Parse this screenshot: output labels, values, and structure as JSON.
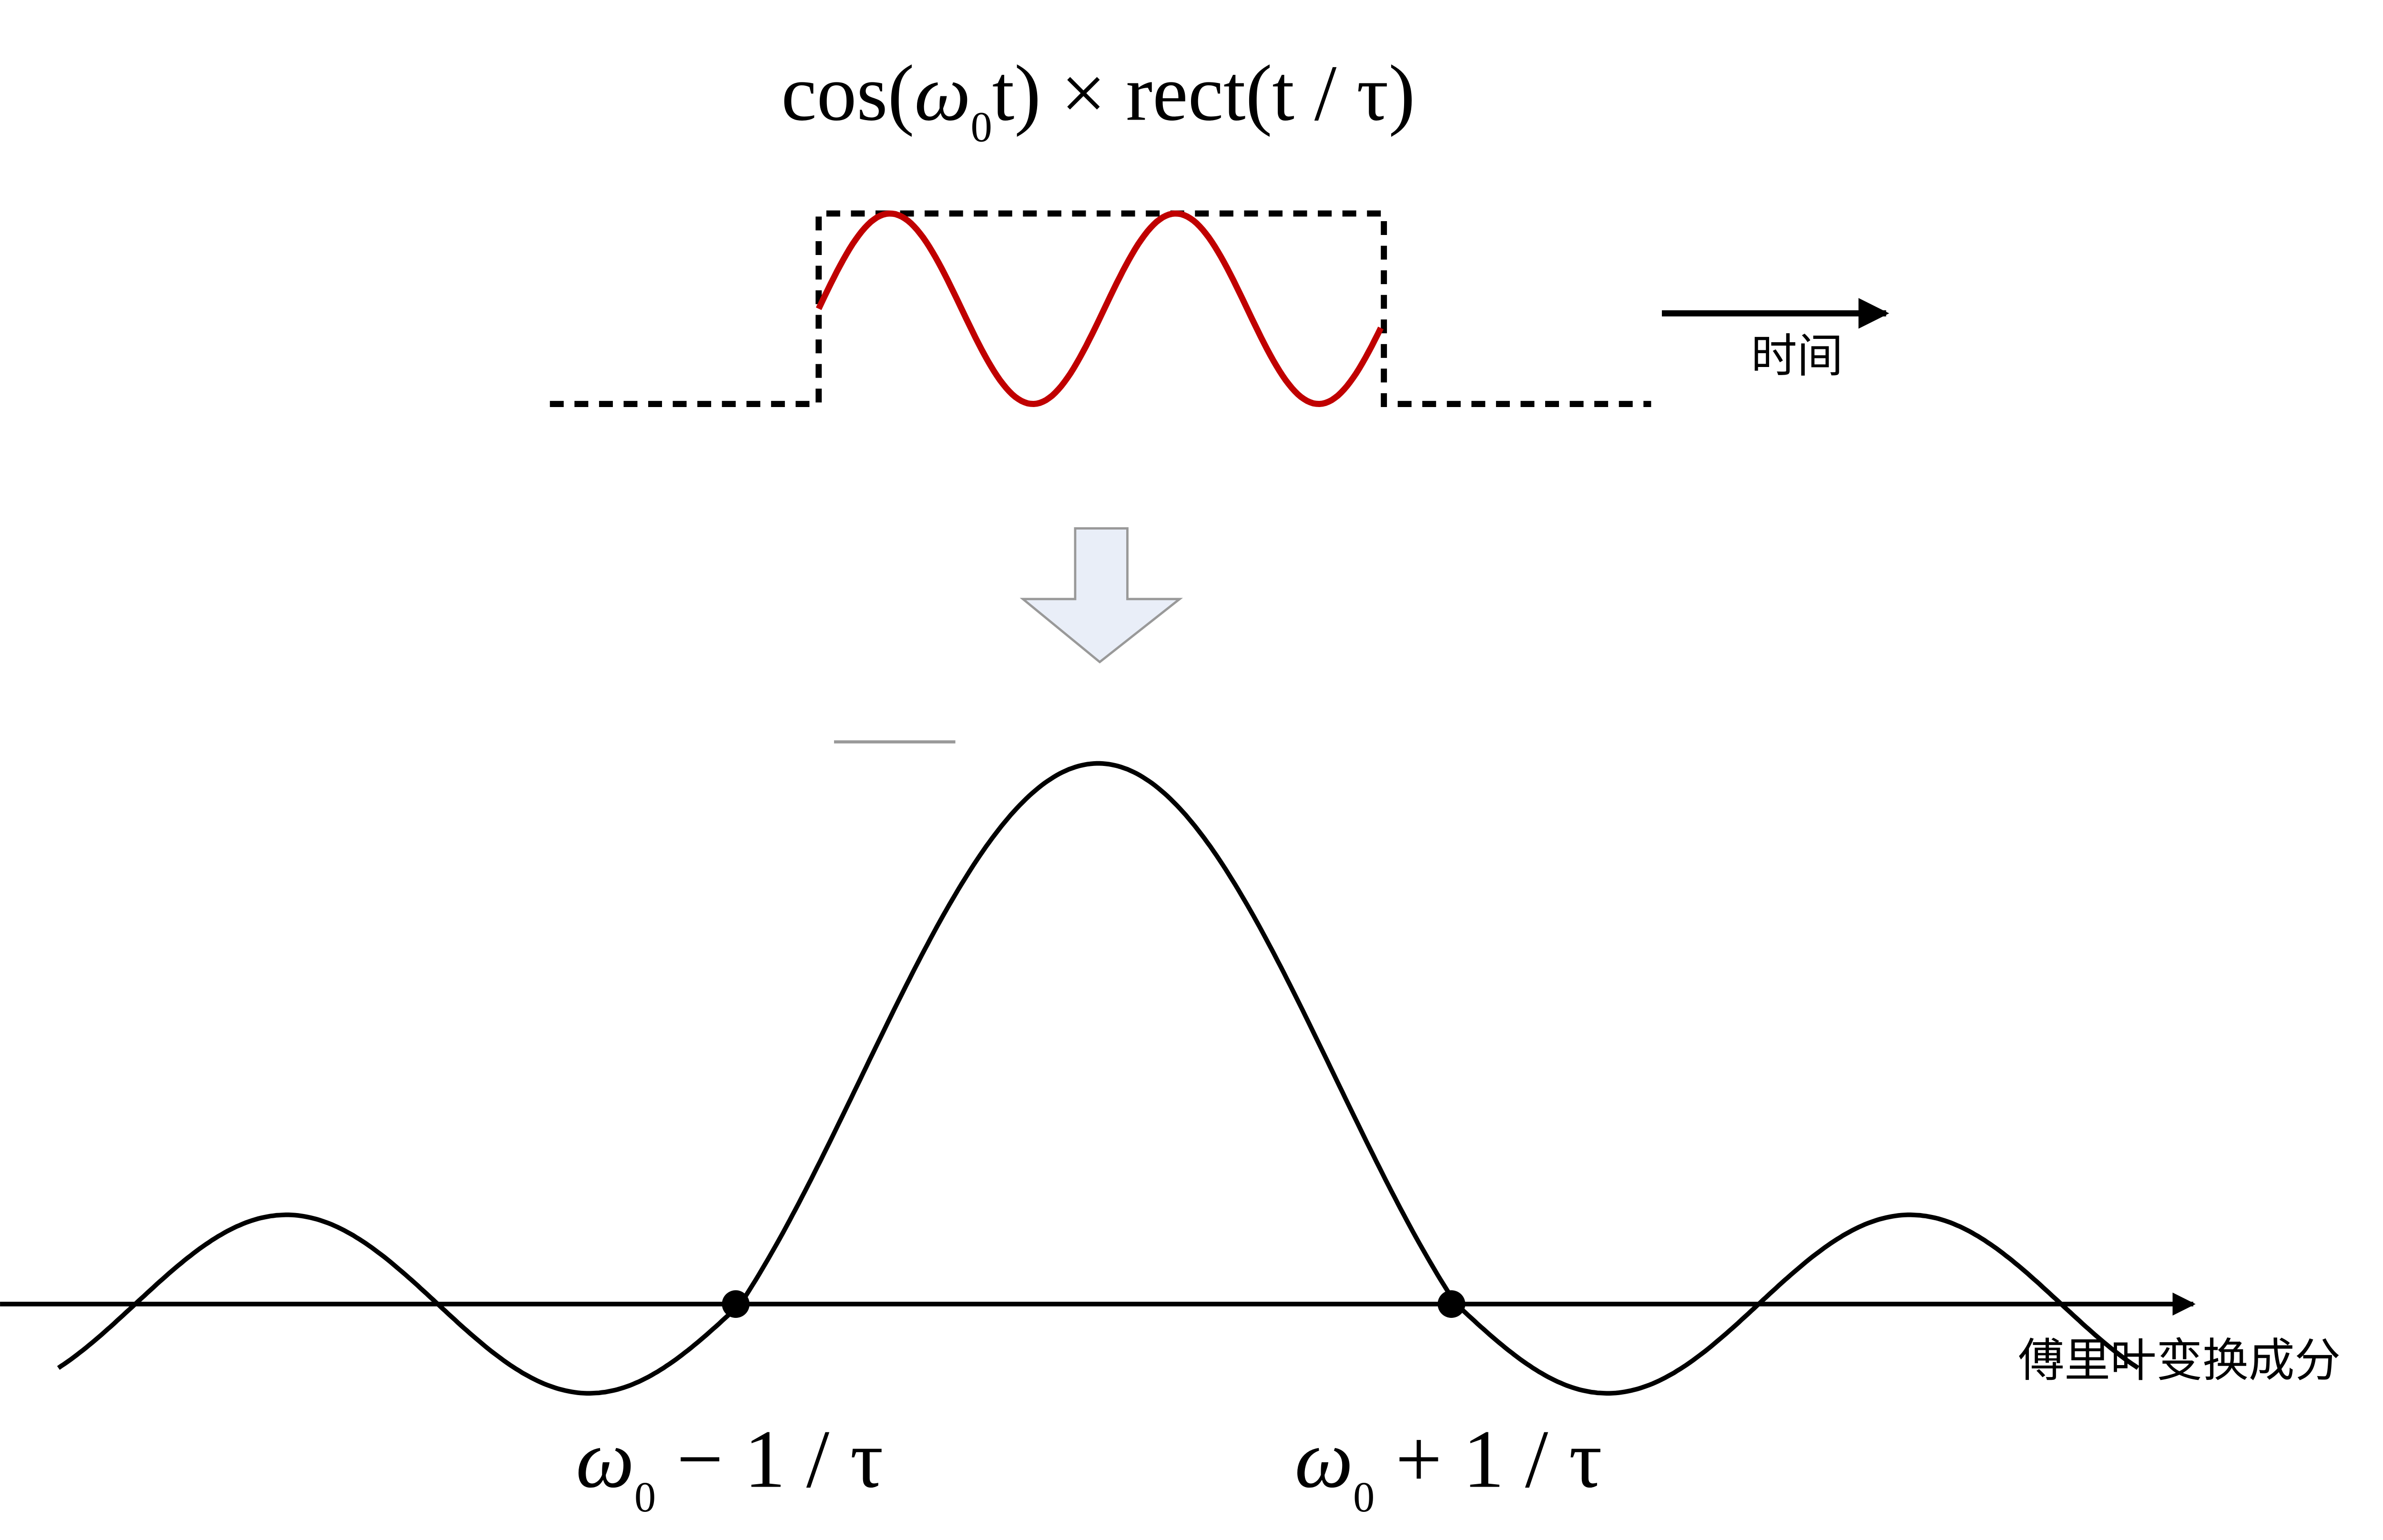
{
  "formula": [
    "cos(",
    "ω",
    "0",
    "t) × rect(t / τ)"
  ],
  "time_label": "时间",
  "axis_label": "傅里叶变换成分",
  "left_zero": {
    "omega": "ω",
    "sub": "0",
    "rest": " − 1 / τ"
  },
  "right_zero": {
    "omega": "ω",
    "sub": "0",
    "rest": " + 1 / τ"
  }
}
